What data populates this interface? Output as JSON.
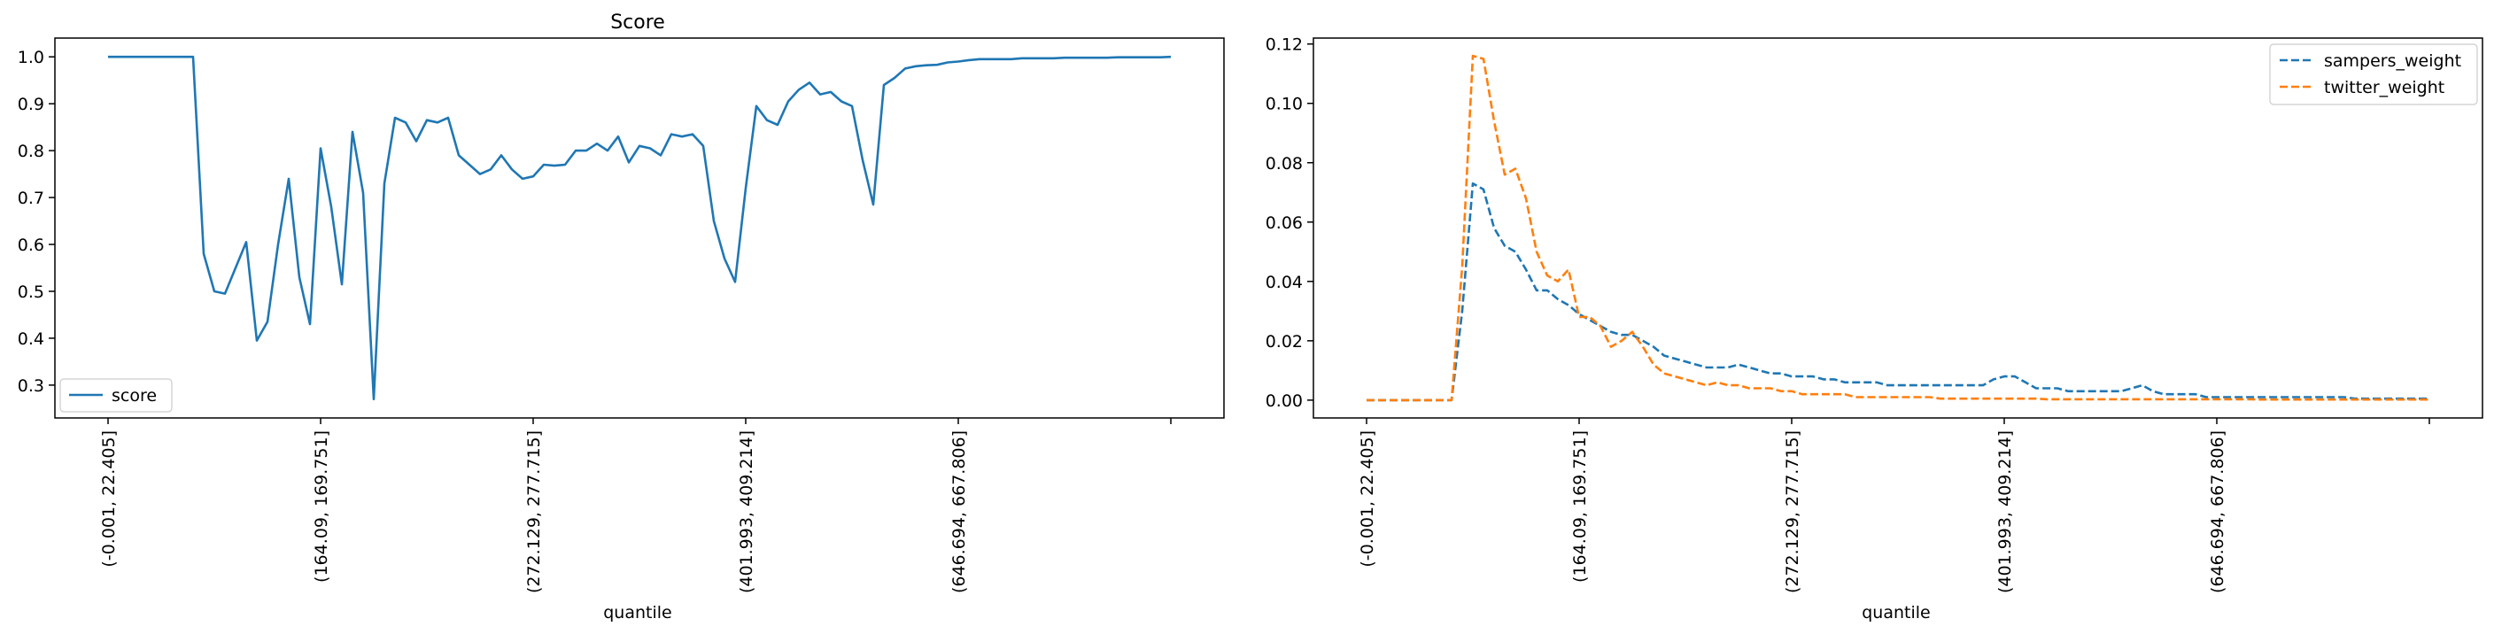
{
  "chart_data": [
    {
      "type": "line",
      "title": "Score",
      "xlabel": "quantile",
      "ylabel": "",
      "ylim": [
        0.23,
        1.04
      ],
      "xlim": [
        -5,
        105
      ],
      "y_ticks": [
        "0.3",
        "0.4",
        "0.5",
        "0.6",
        "0.7",
        "0.8",
        "0.9",
        "1.0"
      ],
      "x_tick_labels": [
        "(-0.001, 22.405]",
        "(164.09, 169.751]",
        "(272.129, 277.715]",
        "(401.993, 409.214]",
        "(646.694, 667.806]",
        ""
      ],
      "legend": {
        "position": "lower-left",
        "entries": [
          "score"
        ]
      },
      "grid": false,
      "colors": {
        "score": "#1f77b4"
      },
      "series": [
        {
          "name": "score",
          "line": "solid",
          "values": [
            1.0,
            1.0,
            1.0,
            1.0,
            1.0,
            1.0,
            1.0,
            1.0,
            1.0,
            0.58,
            0.5,
            0.495,
            0.55,
            0.605,
            0.395,
            0.435,
            0.6,
            0.74,
            0.53,
            0.43,
            0.805,
            0.68,
            0.515,
            0.84,
            0.71,
            0.27,
            0.73,
            0.87,
            0.86,
            0.82,
            0.865,
            0.86,
            0.87,
            0.79,
            0.77,
            0.75,
            0.76,
            0.79,
            0.76,
            0.74,
            0.745,
            0.77,
            0.768,
            0.77,
            0.8,
            0.8,
            0.815,
            0.8,
            0.83,
            0.775,
            0.81,
            0.805,
            0.79,
            0.835,
            0.83,
            0.835,
            0.81,
            0.65,
            0.57,
            0.52,
            0.72,
            0.895,
            0.865,
            0.855,
            0.905,
            0.93,
            0.945,
            0.92,
            0.925,
            0.905,
            0.895,
            0.78,
            0.685,
            0.94,
            0.955,
            0.975,
            0.98,
            0.982,
            0.983,
            0.988,
            0.99,
            0.993,
            0.995,
            0.995,
            0.995,
            0.995,
            0.997,
            0.997,
            0.997,
            0.997,
            0.998,
            0.998,
            0.998,
            0.998,
            0.998,
            0.999,
            0.999,
            0.999,
            0.999,
            0.999,
            1.0
          ]
        }
      ]
    },
    {
      "type": "line",
      "title": "",
      "xlabel": "quantile",
      "ylabel": "",
      "ylim": [
        -0.006,
        0.122
      ],
      "xlim": [
        -5,
        105
      ],
      "y_ticks": [
        "0.00",
        "0.02",
        "0.04",
        "0.06",
        "0.08",
        "0.10",
        "0.12"
      ],
      "x_tick_labels": [
        "(-0.001, 22.405]",
        "(164.09, 169.751]",
        "(272.129, 277.715]",
        "(401.993, 409.214]",
        "(646.694, 667.806]",
        ""
      ],
      "legend": {
        "position": "upper-right",
        "entries": [
          "sampers_weight",
          "twitter_weight"
        ]
      },
      "grid": false,
      "colors": {
        "sampers_weight": "#1f77b4",
        "twitter_weight": "#ff7f0e"
      },
      "series": [
        {
          "name": "sampers_weight",
          "line": "dashed",
          "values": [
            0,
            0,
            0,
            0,
            0,
            0,
            0,
            0,
            0,
            0.03,
            0.073,
            0.071,
            0.058,
            0.052,
            0.05,
            0.044,
            0.037,
            0.037,
            0.034,
            0.032,
            0.029,
            0.027,
            0.025,
            0.023,
            0.022,
            0.022,
            0.02,
            0.018,
            0.015,
            0.014,
            0.013,
            0.012,
            0.011,
            0.011,
            0.011,
            0.012,
            0.011,
            0.01,
            0.009,
            0.009,
            0.008,
            0.008,
            0.008,
            0.007,
            0.007,
            0.006,
            0.006,
            0.006,
            0.006,
            0.005,
            0.005,
            0.005,
            0.005,
            0.005,
            0.005,
            0.005,
            0.005,
            0.005,
            0.005,
            0.007,
            0.008,
            0.008,
            0.006,
            0.004,
            0.004,
            0.004,
            0.003,
            0.003,
            0.003,
            0.003,
            0.003,
            0.003,
            0.004,
            0.005,
            0.003,
            0.002,
            0.002,
            0.002,
            0.002,
            0.001,
            0.001,
            0.001,
            0.001,
            0.001,
            0.001,
            0.001,
            0.001,
            0.001,
            0.001,
            0.001,
            0.001,
            0.001,
            0.001,
            0.0005,
            0.0005,
            0.0005,
            0.0005,
            0.0005,
            0.0005,
            0.0005,
            0.0005
          ]
        },
        {
          "name": "twitter_weight",
          "line": "dashed",
          "values": [
            0,
            0,
            0,
            0,
            0,
            0,
            0,
            0,
            0,
            0.045,
            0.116,
            0.115,
            0.094,
            0.076,
            0.078,
            0.068,
            0.05,
            0.042,
            0.04,
            0.044,
            0.028,
            0.028,
            0.025,
            0.018,
            0.02,
            0.023,
            0.018,
            0.012,
            0.009,
            0.008,
            0.007,
            0.006,
            0.005,
            0.006,
            0.005,
            0.005,
            0.004,
            0.004,
            0.004,
            0.003,
            0.003,
            0.002,
            0.002,
            0.002,
            0.002,
            0.002,
            0.001,
            0.001,
            0.001,
            0.001,
            0.001,
            0.001,
            0.001,
            0.001,
            0.0005,
            0.0005,
            0.0005,
            0.0005,
            0.0005,
            0.0005,
            0.0005,
            0.0005,
            0.0005,
            0.0005,
            0.0003,
            0.0003,
            0.0003,
            0.0003,
            0.0003,
            0.0003,
            0.0003,
            0.0003,
            0.0003,
            0.0003,
            0.0003,
            0.0003,
            0.0003,
            0.0003,
            0.0003,
            0.0003,
            0.0003,
            0.0003,
            0.0003,
            0.0003,
            0.0002,
            0.0002,
            0.0002,
            0.0002,
            0.0002,
            0.0002,
            0.0002,
            0.0002,
            0.0002,
            0.0002,
            0.0002,
            0.0002,
            0.0002,
            0.0002,
            0.0002,
            0.0002,
            0.0002
          ]
        }
      ]
    }
  ]
}
